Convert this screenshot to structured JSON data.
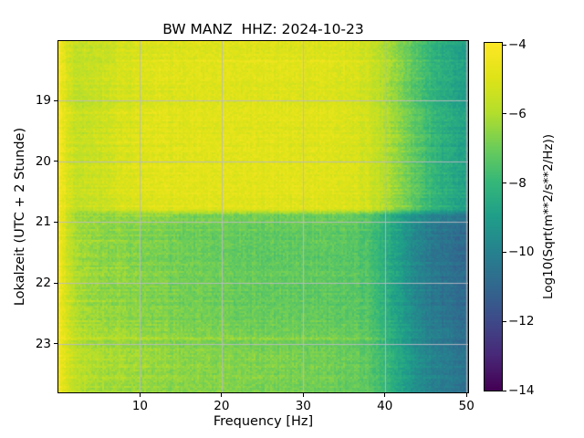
{
  "chart_data": {
    "type": "heatmap",
    "subtype": "spectrogram",
    "title": "BW MANZ  HHZ: 2024-10-23",
    "xlabel": "Frequency [Hz]",
    "ylabel": "Lokalzeit (UTC + 2 Stunde)",
    "xlim": [
      0.0,
      50.2
    ],
    "ylim": [
      18.02,
      23.8
    ],
    "y_axis_inverted": true,
    "xticks": [
      10,
      20,
      30,
      40,
      50
    ],
    "xtick_labels": [
      "10",
      "20",
      "30",
      "40",
      "50"
    ],
    "yticks": [
      19,
      20,
      21,
      22,
      23
    ],
    "ytick_labels": [
      "19",
      "20",
      "21",
      "22",
      "23"
    ],
    "grid": true,
    "grid_color": "#b9b9c2",
    "colorbar": {
      "label": "Log10(Sqrt(m**2/s**2/Hz))",
      "vmin": -14,
      "vmax": -4,
      "ticks": [
        -4,
        -6,
        -8,
        -10,
        -12,
        -14
      ],
      "tick_labels": [
        "−4",
        "−6",
        "−8",
        "−10",
        "−12",
        "−14"
      ],
      "colormap": "viridis",
      "stops": [
        "#440154",
        "#482878",
        "#3e4a89",
        "#31688e",
        "#26828e",
        "#1f9e89",
        "#35b779",
        "#6dcd59",
        "#b4de2c",
        "#dfe318",
        "#fde725"
      ]
    },
    "freq_bins": [
      0.3,
      1,
      2,
      3.5,
      5,
      7,
      9,
      11,
      13,
      16,
      20,
      24,
      28,
      32,
      35,
      38,
      41,
      44,
      47,
      50.2
    ],
    "time_bins": [
      18.02,
      18.6,
      19.2,
      19.8,
      20.4,
      20.78,
      20.88,
      21.05,
      21.5,
      22.0,
      22.5,
      23.0,
      23.4,
      23.8
    ],
    "values": [
      [
        -4.35,
        -5.15,
        -5.7,
        -5.65,
        -5.6,
        -5.4,
        -5.2,
        -5.15,
        -5.1,
        -5.0,
        -5.0,
        -5.0,
        -5.0,
        -5.05,
        -5.1,
        -5.4,
        -6.4,
        -7.5,
        -8.5,
        -9.0
      ],
      [
        -4.35,
        -5.15,
        -5.7,
        -5.65,
        -5.55,
        -5.35,
        -5.2,
        -5.1,
        -5.05,
        -5.0,
        -4.95,
        -4.95,
        -5.0,
        -5.0,
        -5.1,
        -5.4,
        -6.4,
        -7.5,
        -8.5,
        -9.0
      ],
      [
        -4.35,
        -5.1,
        -5.65,
        -5.6,
        -5.5,
        -5.3,
        -5.15,
        -5.05,
        -5.0,
        -4.95,
        -4.95,
        -4.95,
        -4.95,
        -5.0,
        -5.05,
        -5.35,
        -6.3,
        -7.4,
        -8.4,
        -8.9
      ],
      [
        -4.35,
        -5.1,
        -5.65,
        -5.6,
        -5.5,
        -5.3,
        -5.1,
        -5.0,
        -5.0,
        -4.95,
        -4.9,
        -4.9,
        -4.95,
        -5.0,
        -5.05,
        -5.35,
        -6.3,
        -7.4,
        -8.4,
        -8.9
      ],
      [
        -4.35,
        -5.05,
        -5.6,
        -5.55,
        -5.45,
        -5.25,
        -5.1,
        -5.0,
        -4.95,
        -4.9,
        -4.9,
        -4.9,
        -4.9,
        -4.95,
        -5.0,
        -5.3,
        -6.3,
        -7.4,
        -8.4,
        -8.9
      ],
      [
        -4.35,
        -5.05,
        -5.6,
        -5.55,
        -5.45,
        -5.25,
        -5.1,
        -5.0,
        -4.95,
        -4.9,
        -4.9,
        -4.9,
        -4.9,
        -4.95,
        -5.0,
        -5.3,
        -6.3,
        -7.4,
        -8.4,
        -8.9
      ],
      [
        -4.6,
        -5.8,
        -6.5,
        -6.7,
        -6.75,
        -6.75,
        -6.75,
        -6.75,
        -6.75,
        -6.8,
        -6.85,
        -6.9,
        -6.95,
        -7.0,
        -7.05,
        -7.35,
        -8.5,
        -9.5,
        -10.1,
        -10.4
      ],
      [
        -4.45,
        -5.4,
        -6.1,
        -6.35,
        -6.5,
        -6.6,
        -6.65,
        -6.75,
        -6.85,
        -6.95,
        -7.05,
        -7.1,
        -7.15,
        -7.15,
        -7.2,
        -7.45,
        -8.6,
        -9.8,
        -10.5,
        -10.9
      ],
      [
        -4.45,
        -5.4,
        -6.1,
        -6.4,
        -6.55,
        -6.65,
        -6.7,
        -6.8,
        -6.9,
        -7.0,
        -7.1,
        -7.2,
        -7.25,
        -7.25,
        -7.3,
        -7.55,
        -8.7,
        -9.9,
        -10.6,
        -11.0
      ],
      [
        -4.45,
        -5.35,
        -6.05,
        -6.35,
        -6.5,
        -6.6,
        -6.65,
        -6.75,
        -6.85,
        -6.95,
        -7.05,
        -7.15,
        -7.2,
        -7.25,
        -7.3,
        -7.5,
        -8.7,
        -9.9,
        -10.6,
        -11.0
      ],
      [
        -4.45,
        -5.3,
        -5.95,
        -6.25,
        -6.4,
        -6.5,
        -6.55,
        -6.65,
        -6.75,
        -6.85,
        -6.95,
        -7.05,
        -7.1,
        -7.15,
        -7.2,
        -7.45,
        -8.6,
        -9.8,
        -10.5,
        -10.9
      ],
      [
        -4.45,
        -5.2,
        -5.8,
        -6.05,
        -6.2,
        -6.3,
        -6.4,
        -6.5,
        -6.6,
        -6.7,
        -6.75,
        -6.85,
        -6.9,
        -7.0,
        -7.05,
        -7.3,
        -8.4,
        -9.6,
        -10.3,
        -10.7
      ],
      [
        -4.45,
        -5.15,
        -5.7,
        -5.95,
        -6.1,
        -6.2,
        -6.3,
        -6.4,
        -6.5,
        -6.55,
        -6.65,
        -6.7,
        -6.8,
        -6.9,
        -7.0,
        -7.25,
        -8.3,
        -9.5,
        -10.2,
        -10.6
      ],
      [
        -4.45,
        -5.15,
        -5.7,
        -5.95,
        -6.1,
        -6.2,
        -6.3,
        -6.4,
        -6.5,
        -6.55,
        -6.6,
        -6.7,
        -6.8,
        -6.9,
        -7.0,
        -7.25,
        -8.3,
        -9.5,
        -10.2,
        -10.6
      ]
    ],
    "streaks": [
      {
        "t": 18.17,
        "f1": 1,
        "f2": 10,
        "d": 0.3,
        "w": 0.03
      },
      {
        "t": 18.35,
        "f1": 7,
        "f2": 50,
        "d": 0.55,
        "w": 0.035
      },
      {
        "t": 18.5,
        "f1": 9,
        "f2": 14,
        "d": 0.3,
        "w": 0.03
      },
      {
        "t": 18.72,
        "f1": 1,
        "f2": 16,
        "d": 0.35,
        "w": 0.03
      },
      {
        "t": 18.92,
        "f1": 5,
        "f2": 13,
        "d": 0.3,
        "w": 0.03
      },
      {
        "t": 19.2,
        "f1": 1,
        "f2": 12,
        "d": 0.3,
        "w": 0.03
      },
      {
        "t": 19.47,
        "f1": 2,
        "f2": 14,
        "d": 0.35,
        "w": 0.03
      },
      {
        "t": 19.7,
        "f1": 1,
        "f2": 10,
        "d": 0.3,
        "w": 0.03
      },
      {
        "t": 20.1,
        "f1": 1,
        "f2": 14,
        "d": 0.3,
        "w": 0.03
      },
      {
        "t": 20.35,
        "f1": 2,
        "f2": 12,
        "d": 0.3,
        "w": 0.03
      },
      {
        "t": 20.9,
        "f1": 0.3,
        "f2": 14,
        "d": 0.6,
        "w": 0.035
      },
      {
        "t": 21.3,
        "f1": 2,
        "f2": 8,
        "d": 0.3,
        "w": 0.03
      },
      {
        "t": 21.55,
        "f1": 2,
        "f2": 10,
        "d": 0.4,
        "w": 0.03
      },
      {
        "t": 21.75,
        "f1": 3,
        "f2": 9,
        "d": 0.45,
        "w": 0.03
      },
      {
        "t": 22.3,
        "f1": 1,
        "f2": 7,
        "d": 0.3,
        "w": 0.03
      },
      {
        "t": 22.92,
        "f1": 0.3,
        "f2": 40,
        "d": 0.6,
        "w": 0.035
      },
      {
        "t": 23.1,
        "f1": 1,
        "f2": 20,
        "d": 0.25,
        "w": 0.03
      }
    ],
    "texture": {
      "cell_noise": 0.3,
      "row_noise_low": 0.2,
      "row_noise_mid": 0.13,
      "col_noise": 0.12,
      "seed": 7
    }
  }
}
